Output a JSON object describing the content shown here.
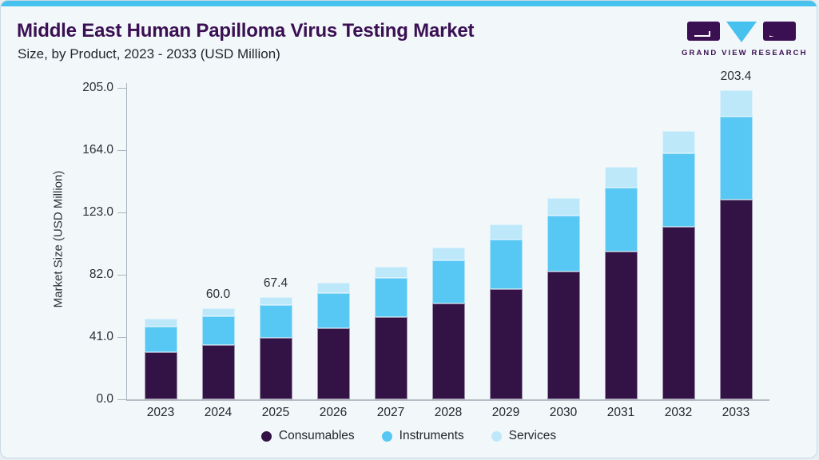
{
  "header": {
    "title": "Middle East Human Papilloma Virus Testing Market",
    "subtitle": "Size, by Product, 2023 - 2033 (USD Million)"
  },
  "logo": {
    "text": "GRAND VIEW RESEARCH"
  },
  "colors": {
    "top_strip": "#47C1ED",
    "card_background": "#F2F7FA",
    "card_border": "#C9D9E6",
    "title": "#3A1053",
    "axis": "#A9B4BE",
    "consumables": "#331246",
    "instruments": "#57C8F4",
    "services": "#BDE8FA"
  },
  "chart_data": {
    "type": "bar",
    "stacked": true,
    "title": "Middle East Human Papilloma Virus Testing Market Size, by Product, 2023 - 2033 (USD Million)",
    "xlabel": "",
    "ylabel": "Market Size (USD Million)",
    "ylim": [
      0,
      205
    ],
    "y_ticks": [
      0.0,
      41.0,
      82.0,
      123.0,
      164.0,
      205.0
    ],
    "y_tick_labels": [
      "0.0",
      "41.0",
      "82.0",
      "123.0",
      "164.0",
      "205.0"
    ],
    "grid": false,
    "categories": [
      "2023",
      "2024",
      "2025",
      "2026",
      "2027",
      "2028",
      "2029",
      "2030",
      "2031",
      "2032",
      "2033"
    ],
    "series": [
      {
        "name": "Consumables",
        "color": "#331246",
        "values": [
          31.2,
          35.9,
          40.4,
          47.0,
          54.0,
          63.0,
          72.7,
          84.1,
          97.3,
          113.4,
          131.4
        ]
      },
      {
        "name": "Instruments",
        "color": "#57C8F4",
        "values": [
          16.7,
          18.6,
          21.4,
          22.7,
          25.9,
          28.3,
          32.3,
          37.0,
          42.0,
          48.3,
          54.9
        ]
      },
      {
        "name": "Services",
        "color": "#BDE8FA",
        "values": [
          5.3,
          5.5,
          5.6,
          6.9,
          7.4,
          8.7,
          10.3,
          11.2,
          13.4,
          14.7,
          17.1
        ]
      }
    ],
    "totals": [
      53.2,
      60.0,
      67.4,
      76.6,
      87.3,
      100.0,
      115.3,
      132.3,
      152.7,
      176.4,
      203.4
    ],
    "bar_total_labels": {
      "2024": "60.0",
      "2025": "67.4",
      "2033": "203.4"
    },
    "legend": {
      "position": "bottom",
      "entries": [
        "Consumables",
        "Instruments",
        "Services"
      ]
    }
  }
}
